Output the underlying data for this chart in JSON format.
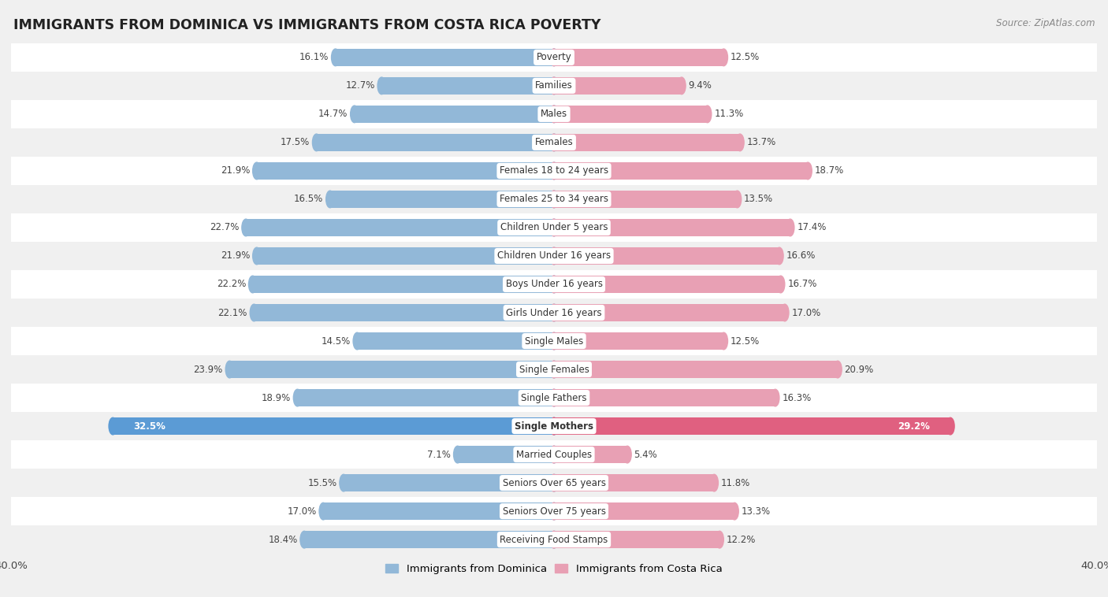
{
  "title": "IMMIGRANTS FROM DOMINICA VS IMMIGRANTS FROM COSTA RICA POVERTY",
  "source": "Source: ZipAtlas.com",
  "categories": [
    "Poverty",
    "Families",
    "Males",
    "Females",
    "Females 18 to 24 years",
    "Females 25 to 34 years",
    "Children Under 5 years",
    "Children Under 16 years",
    "Boys Under 16 years",
    "Girls Under 16 years",
    "Single Males",
    "Single Females",
    "Single Fathers",
    "Single Mothers",
    "Married Couples",
    "Seniors Over 65 years",
    "Seniors Over 75 years",
    "Receiving Food Stamps"
  ],
  "dominica": [
    16.1,
    12.7,
    14.7,
    17.5,
    21.9,
    16.5,
    22.7,
    21.9,
    22.2,
    22.1,
    14.5,
    23.9,
    18.9,
    32.5,
    7.1,
    15.5,
    17.0,
    18.4
  ],
  "costa_rica": [
    12.5,
    9.4,
    11.3,
    13.7,
    18.7,
    13.5,
    17.4,
    16.6,
    16.7,
    17.0,
    12.5,
    20.9,
    16.3,
    29.2,
    5.4,
    11.8,
    13.3,
    12.2
  ],
  "dominica_color": "#92b8d8",
  "costa_rica_color": "#e8a0b4",
  "single_mothers_dominica_color": "#5b9bd5",
  "single_mothers_costa_rica_color": "#e06080",
  "background_color": "#f0f0f0",
  "row_color_even": "#ffffff",
  "row_color_odd": "#f0f0f0",
  "xlim": 40.0,
  "legend_dominica": "Immigrants from Dominica",
  "legend_costa_rica": "Immigrants from Costa Rica"
}
